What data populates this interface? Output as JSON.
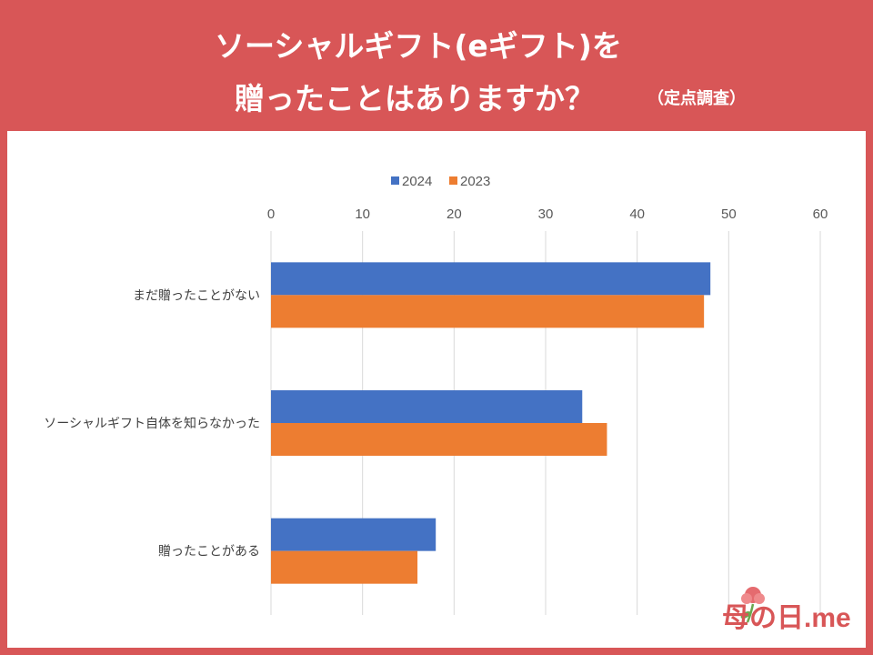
{
  "header": {
    "title_line1": "ソーシャルギフト(eギフト)を",
    "title_line2": "贈ったことはありますか？",
    "title_note": "（定点調査）"
  },
  "logo": {
    "text": "母の日.me"
  },
  "colors": {
    "background": "#d85657",
    "series_2024": "#4472c4",
    "series_2023": "#ed7d31"
  },
  "chart_data": {
    "type": "bar",
    "orientation": "horizontal",
    "title": "ソーシャルギフト(eギフト)を贈ったことはありますか？（定点調査）",
    "categories": [
      "まだ贈ったことがない",
      "ソーシャルギフト自体を知らなかった",
      "贈ったことがある"
    ],
    "series": [
      {
        "name": "2024",
        "values": [
          48,
          34,
          18
        ]
      },
      {
        "name": "2023",
        "values": [
          47.3,
          36.7,
          16
        ]
      }
    ],
    "xlim": [
      0,
      60
    ],
    "xticks": [
      0,
      10,
      20,
      30,
      40,
      50,
      60
    ],
    "legend": "top",
    "grid": true
  }
}
